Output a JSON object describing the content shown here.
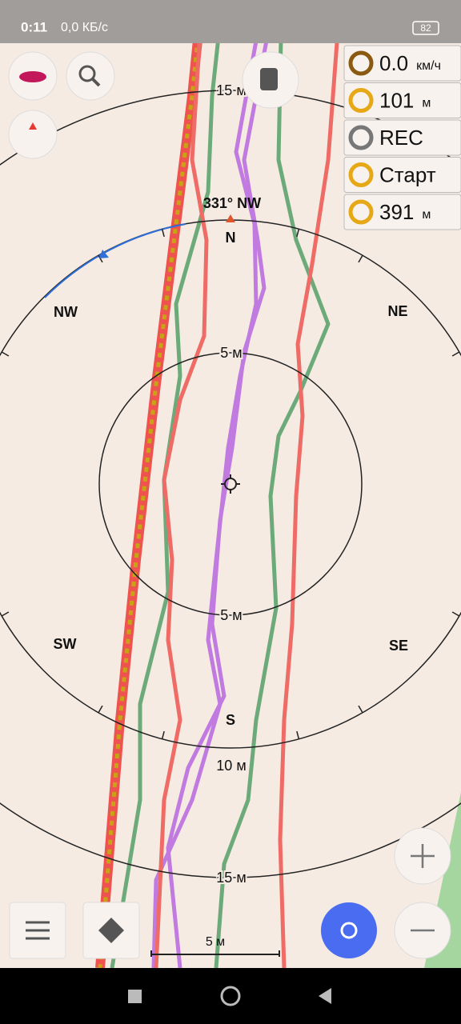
{
  "status_bar": {
    "time": "0:11",
    "speed": "0,0 КБ/с",
    "battery": "82"
  },
  "widgets": [
    {
      "value": "0.0",
      "unit": "км/ч"
    },
    {
      "value": "101",
      "unit": "м"
    },
    {
      "value": "REC"
    },
    {
      "value": "Старт"
    },
    {
      "value": "391",
      "unit": "м"
    }
  ],
  "compass": {
    "heading": "331° NW",
    "north": "N",
    "south": "S",
    "nw": "NW",
    "ne": "NE",
    "sw": "SW",
    "se": "SE"
  },
  "rings": {
    "top_outer": "15 м",
    "top_inner": "5 м",
    "bottom_inner": "5 м",
    "bottom_middle": "10 м",
    "bottom_outer": "15 м"
  },
  "scale": "5 м"
}
